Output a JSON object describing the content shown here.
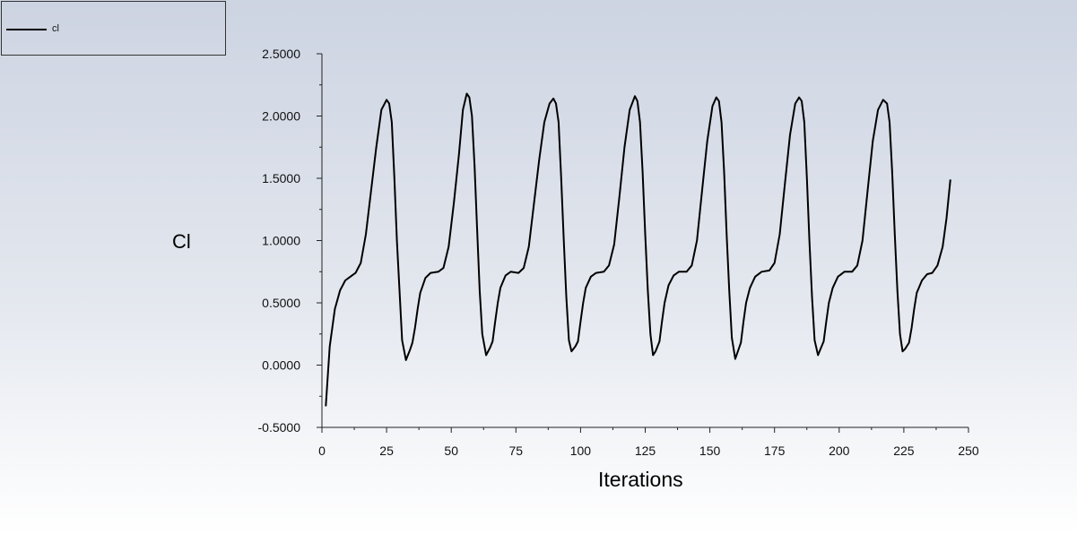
{
  "legend": {
    "entries": [
      {
        "label": "cl",
        "color": "#000000"
      }
    ]
  },
  "chart_data": {
    "type": "line",
    "title": "",
    "xlabel": "Iterations",
    "ylabel": "Cl",
    "xlim": [
      0,
      250
    ],
    "ylim": [
      -0.5,
      2.5
    ],
    "x_ticks": [
      0,
      25,
      50,
      75,
      100,
      125,
      150,
      175,
      200,
      225,
      250
    ],
    "x_tick_labels": [
      "0",
      "25",
      "50",
      "75",
      "100",
      "125",
      "150",
      "175",
      "200",
      "225",
      "250"
    ],
    "y_ticks": [
      -0.5,
      0,
      0.5,
      1,
      1.5,
      2,
      2.5
    ],
    "y_tick_labels": [
      "-0.5000",
      "0.0000",
      "0.5000",
      "1.0000",
      "1.5000",
      "2.0000",
      "2.5000"
    ],
    "grid": false,
    "legend_position": "top-left",
    "series": [
      {
        "name": "cl",
        "color": "#000000",
        "points": [
          [
            1.5,
            -0.33
          ],
          [
            3,
            0.15
          ],
          [
            5,
            0.45
          ],
          [
            7,
            0.6
          ],
          [
            9,
            0.68
          ],
          [
            11,
            0.71
          ],
          [
            13,
            0.74
          ],
          [
            15,
            0.82
          ],
          [
            17,
            1.05
          ],
          [
            19,
            1.4
          ],
          [
            21,
            1.75
          ],
          [
            23,
            2.05
          ],
          [
            25,
            2.13
          ],
          [
            26,
            2.1
          ],
          [
            27,
            1.95
          ],
          [
            28,
            1.5
          ],
          [
            29,
            1.0
          ],
          [
            30,
            0.6
          ],
          [
            31,
            0.2
          ],
          [
            32.5,
            0.04
          ],
          [
            34,
            0.12
          ],
          [
            35,
            0.18
          ],
          [
            36,
            0.3
          ],
          [
            37,
            0.45
          ],
          [
            38,
            0.58
          ],
          [
            40,
            0.7
          ],
          [
            42,
            0.74
          ],
          [
            45,
            0.75
          ],
          [
            47,
            0.78
          ],
          [
            49,
            0.95
          ],
          [
            51,
            1.3
          ],
          [
            53,
            1.7
          ],
          [
            54.5,
            2.05
          ],
          [
            56,
            2.18
          ],
          [
            57,
            2.15
          ],
          [
            58,
            2.0
          ],
          [
            59,
            1.6
          ],
          [
            60,
            1.1
          ],
          [
            61,
            0.6
          ],
          [
            62,
            0.25
          ],
          [
            63.5,
            0.08
          ],
          [
            65,
            0.14
          ],
          [
            66,
            0.19
          ],
          [
            67,
            0.35
          ],
          [
            68,
            0.5
          ],
          [
            69,
            0.62
          ],
          [
            71,
            0.72
          ],
          [
            73,
            0.75
          ],
          [
            76,
            0.74
          ],
          [
            78,
            0.78
          ],
          [
            80,
            0.95
          ],
          [
            82,
            1.3
          ],
          [
            84,
            1.65
          ],
          [
            86,
            1.95
          ],
          [
            88,
            2.1
          ],
          [
            89.5,
            2.14
          ],
          [
            90.5,
            2.1
          ],
          [
            91.5,
            1.95
          ],
          [
            92.5,
            1.5
          ],
          [
            93.5,
            1.0
          ],
          [
            94.5,
            0.55
          ],
          [
            95.5,
            0.2
          ],
          [
            96.5,
            0.11
          ],
          [
            98,
            0.15
          ],
          [
            99,
            0.19
          ],
          [
            100,
            0.35
          ],
          [
            101,
            0.5
          ],
          [
            102,
            0.62
          ],
          [
            104,
            0.71
          ],
          [
            106,
            0.74
          ],
          [
            109,
            0.75
          ],
          [
            111,
            0.8
          ],
          [
            113,
            0.97
          ],
          [
            115,
            1.35
          ],
          [
            117,
            1.75
          ],
          [
            119,
            2.05
          ],
          [
            121,
            2.16
          ],
          [
            122,
            2.12
          ],
          [
            123,
            1.95
          ],
          [
            124,
            1.55
          ],
          [
            125,
            1.05
          ],
          [
            126,
            0.6
          ],
          [
            127,
            0.25
          ],
          [
            128,
            0.08
          ],
          [
            129,
            0.11
          ],
          [
            130.5,
            0.19
          ],
          [
            131.5,
            0.35
          ],
          [
            132.5,
            0.5
          ],
          [
            134,
            0.64
          ],
          [
            136,
            0.72
          ],
          [
            138,
            0.75
          ],
          [
            141,
            0.75
          ],
          [
            143,
            0.8
          ],
          [
            145,
            1.0
          ],
          [
            147,
            1.4
          ],
          [
            149,
            1.8
          ],
          [
            151,
            2.08
          ],
          [
            152.5,
            2.15
          ],
          [
            153.5,
            2.12
          ],
          [
            154.5,
            1.95
          ],
          [
            155.5,
            1.55
          ],
          [
            156.5,
            1.05
          ],
          [
            157.5,
            0.6
          ],
          [
            158.5,
            0.22
          ],
          [
            159.8,
            0.05
          ],
          [
            161,
            0.12
          ],
          [
            162,
            0.18
          ],
          [
            163,
            0.35
          ],
          [
            164,
            0.5
          ],
          [
            165.5,
            0.62
          ],
          [
            167.5,
            0.71
          ],
          [
            170,
            0.75
          ],
          [
            173,
            0.76
          ],
          [
            175,
            0.82
          ],
          [
            177,
            1.05
          ],
          [
            179,
            1.45
          ],
          [
            181,
            1.85
          ],
          [
            183,
            2.1
          ],
          [
            184.5,
            2.15
          ],
          [
            185.5,
            2.12
          ],
          [
            186.5,
            1.95
          ],
          [
            187.5,
            1.5
          ],
          [
            188.5,
            1.0
          ],
          [
            189.5,
            0.55
          ],
          [
            190.5,
            0.2
          ],
          [
            191.8,
            0.08
          ],
          [
            193,
            0.14
          ],
          [
            194,
            0.19
          ],
          [
            195,
            0.35
          ],
          [
            196,
            0.5
          ],
          [
            197.5,
            0.62
          ],
          [
            199.5,
            0.71
          ],
          [
            202,
            0.75
          ],
          [
            205,
            0.75
          ],
          [
            207,
            0.8
          ],
          [
            209,
            1.0
          ],
          [
            211,
            1.4
          ],
          [
            213,
            1.8
          ],
          [
            215,
            2.05
          ],
          [
            217,
            2.13
          ],
          [
            218.5,
            2.1
          ],
          [
            219.5,
            1.95
          ],
          [
            220.5,
            1.55
          ],
          [
            221.5,
            1.05
          ],
          [
            222.5,
            0.6
          ],
          [
            223.5,
            0.25
          ],
          [
            224.5,
            0.11
          ],
          [
            225.5,
            0.13
          ],
          [
            227,
            0.18
          ],
          [
            228,
            0.3
          ],
          [
            229,
            0.45
          ],
          [
            230,
            0.58
          ],
          [
            232,
            0.68
          ],
          [
            234,
            0.73
          ],
          [
            236,
            0.74
          ],
          [
            238,
            0.8
          ],
          [
            240,
            0.95
          ],
          [
            241.5,
            1.18
          ],
          [
            243,
            1.49
          ]
        ]
      }
    ]
  }
}
